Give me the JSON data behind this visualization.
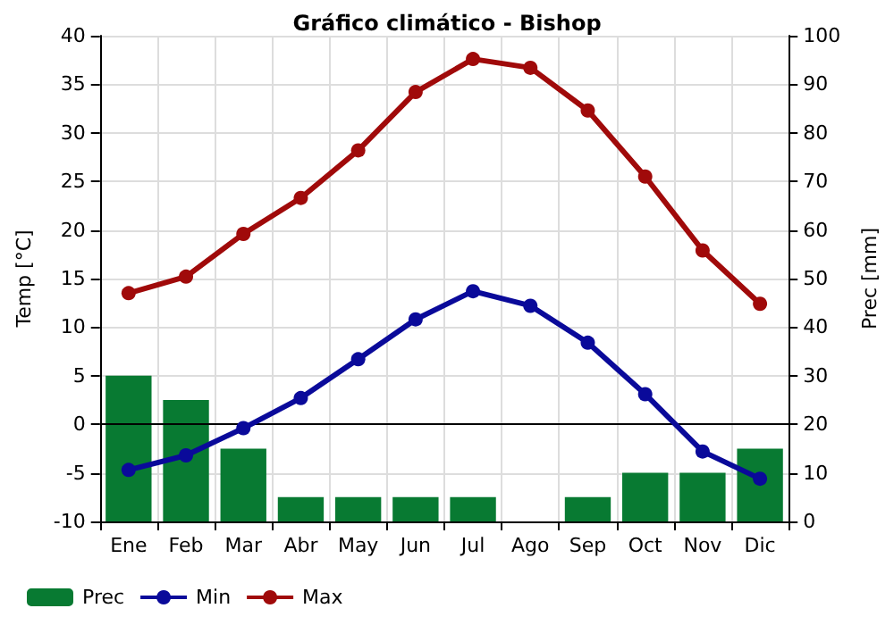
{
  "chart_data": {
    "type": "line",
    "title": "Gráfico climático - Bishop",
    "ylabel": "Temp [°C]",
    "y2label": "Prec [mm]",
    "categories": [
      "Ene",
      "Feb",
      "Mar",
      "Abr",
      "May",
      "Jun",
      "Jul",
      "Ago",
      "Sep",
      "Oct",
      "Nov",
      "Dic"
    ],
    "series": [
      {
        "name": "Prec",
        "type": "bar",
        "axis": "y2",
        "color": "#087a32",
        "values": [
          30,
          25,
          15,
          5,
          5,
          5,
          5,
          0,
          5,
          10,
          10,
          15
        ]
      },
      {
        "name": "Min",
        "color": "#0a0a9a",
        "values": [
          -4.7,
          -3.2,
          -0.4,
          2.7,
          6.7,
          10.8,
          13.7,
          12.2,
          8.4,
          3.1,
          -2.8,
          -5.6
        ]
      },
      {
        "name": "Max",
        "color": "#a00a0a",
        "values": [
          13.5,
          15.2,
          19.6,
          23.3,
          28.2,
          34.2,
          37.6,
          36.7,
          32.3,
          25.5,
          17.9,
          12.4
        ]
      }
    ],
    "ylim": [
      -10,
      40
    ],
    "yticks": [
      -10,
      -5,
      0,
      5,
      10,
      15,
      20,
      25,
      30,
      35,
      40
    ],
    "y2lim": [
      0,
      100
    ],
    "y2ticks": [
      0,
      10,
      20,
      30,
      40,
      50,
      60,
      70,
      80,
      90,
      100
    ],
    "ref_lines": [
      {
        "axis": "y",
        "value": 0,
        "color": "#000000"
      }
    ],
    "grid": true,
    "legend": "bottom left",
    "marker": "circle"
  }
}
